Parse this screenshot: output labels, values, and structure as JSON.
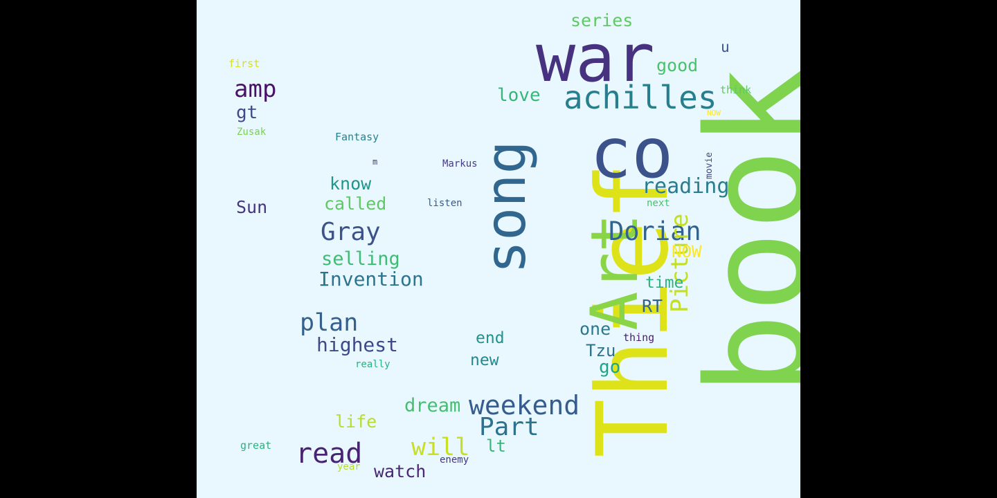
{
  "canvas": {
    "background": "#e9f7fe",
    "letterbox": "#000000"
  },
  "words": [
    {
      "text": "book",
      "color": "#7fd34e"
    },
    {
      "text": "Thief",
      "color": "#dde318"
    },
    {
      "text": "co",
      "color": "#3b528b"
    },
    {
      "text": "war",
      "color": "#46327e"
    },
    {
      "text": "Art",
      "color": "#8ad547"
    },
    {
      "text": "song",
      "color": "#31668e"
    },
    {
      "text": "achilles",
      "color": "#277f8e"
    },
    {
      "text": "Dorian",
      "color": "#33638d"
    },
    {
      "text": "weekend",
      "color": "#365c8d"
    },
    {
      "text": "read",
      "color": "#482374"
    },
    {
      "text": "Part",
      "color": "#2c728e"
    },
    {
      "text": "Gray",
      "color": "#3b528b"
    },
    {
      "text": "Picture",
      "color": "#c2df23"
    },
    {
      "text": "plan",
      "color": "#355f8d"
    },
    {
      "text": "reading",
      "color": "#287c8e"
    },
    {
      "text": "Invention",
      "color": "#2c738e"
    },
    {
      "text": "highest",
      "color": "#3e4989"
    },
    {
      "text": "selling",
      "color": "#3dbc74"
    },
    {
      "text": "amp",
      "color": "#471365"
    },
    {
      "text": "called",
      "color": "#5ec962"
    },
    {
      "text": "know",
      "color": "#1f968b"
    },
    {
      "text": "will",
      "color": "#c8e020"
    },
    {
      "text": "dream",
      "color": "#44bf70"
    },
    {
      "text": "life",
      "color": "#b8de29"
    },
    {
      "text": "watch",
      "color": "#482777"
    },
    {
      "text": "series",
      "color": "#5ec962"
    },
    {
      "text": "good",
      "color": "#4ac16d"
    },
    {
      "text": "love",
      "color": "#35b779"
    },
    {
      "text": "Sun",
      "color": "#46337e"
    },
    {
      "text": "gt",
      "color": "#3e4a89"
    },
    {
      "text": "one",
      "color": "#2a788e"
    },
    {
      "text": "end",
      "color": "#21918c"
    },
    {
      "text": "new",
      "color": "#23898e"
    },
    {
      "text": "go",
      "color": "#20a486"
    },
    {
      "text": "Tzu",
      "color": "#2d718e"
    },
    {
      "text": "time",
      "color": "#2db27d"
    },
    {
      "text": "RT",
      "color": "#33638d"
    },
    {
      "text": "NOW",
      "color": "#fde725"
    },
    {
      "text": "lt",
      "color": "#35b779"
    },
    {
      "text": "u",
      "color": "#3b528b"
    },
    {
      "text": "think",
      "color": "#5ec962"
    },
    {
      "text": "first",
      "color": "#d8e219"
    },
    {
      "text": "Zusak",
      "color": "#7ad151"
    },
    {
      "text": "Fantasy",
      "color": "#26828e"
    },
    {
      "text": "Markus",
      "color": "#443a83"
    },
    {
      "text": "movie",
      "color": "#3e4989"
    },
    {
      "text": "listen",
      "color": "#365c8d"
    },
    {
      "text": "next",
      "color": "#4ac16d"
    },
    {
      "text": "thing",
      "color": "#481f70"
    },
    {
      "text": "really",
      "color": "#2ab07f"
    },
    {
      "text": "great",
      "color": "#2db27d"
    },
    {
      "text": "enemy",
      "color": "#443983"
    },
    {
      "text": "year",
      "color": "#b5de2b"
    },
    {
      "text": "m",
      "color": "#433e85"
    },
    {
      "text": "NOW",
      "color": "#fde725"
    }
  ]
}
